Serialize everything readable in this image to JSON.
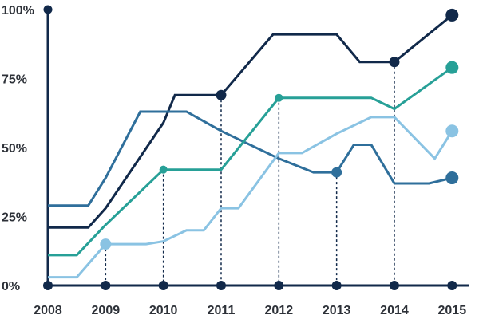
{
  "chart_data": {
    "type": "line",
    "x_ticks": [
      "2008",
      "2009",
      "2010",
      "2011",
      "2012",
      "2013",
      "2014",
      "2015"
    ],
    "y_ticks": [
      "0%",
      "25%",
      "50%",
      "75%",
      "100%"
    ],
    "ylim": [
      0,
      100
    ],
    "xlim": [
      2008,
      2015.3
    ],
    "grid": false,
    "axis_color": "#11294a",
    "series": [
      {
        "color": "#11294a",
        "points": [
          [
            2008,
            21
          ],
          [
            2008.7,
            21
          ],
          [
            2009,
            28
          ],
          [
            2010,
            59
          ],
          [
            2010.2,
            69
          ],
          [
            2011,
            69
          ],
          [
            2011.9,
            91
          ],
          [
            2012.2,
            91
          ],
          [
            2013,
            91
          ],
          [
            2013.4,
            81
          ],
          [
            2014,
            81
          ],
          [
            2015,
            98
          ]
        ],
        "marker_x": [
          2011,
          2014
        ],
        "end_marker": true
      },
      {
        "color": "#2f6f9b",
        "points": [
          [
            2008,
            29
          ],
          [
            2008.7,
            29
          ],
          [
            2009,
            39
          ],
          [
            2009.6,
            63
          ],
          [
            2010.4,
            63
          ],
          [
            2011,
            56
          ],
          [
            2012,
            46
          ],
          [
            2012.6,
            41
          ],
          [
            2013,
            41
          ],
          [
            2013.3,
            51
          ],
          [
            2013.6,
            51
          ],
          [
            2014,
            37
          ],
          [
            2014.6,
            37
          ],
          [
            2015,
            39
          ]
        ],
        "marker_x": [
          2013
        ],
        "end_marker": true
      },
      {
        "color": "#27a097",
        "points": [
          [
            2008,
            11
          ],
          [
            2008.5,
            11
          ],
          [
            2009,
            22
          ],
          [
            2010,
            42
          ],
          [
            2010.8,
            42
          ],
          [
            2011,
            42
          ],
          [
            2012,
            68
          ],
          [
            2013,
            68
          ],
          [
            2013.6,
            68
          ],
          [
            2014,
            64
          ],
          [
            2015,
            79
          ]
        ],
        "marker_x": [
          2010,
          2012
        ],
        "end_marker": true
      },
      {
        "color": "#8ac3e3",
        "points": [
          [
            2008,
            3
          ],
          [
            2008.5,
            3
          ],
          [
            2009,
            15
          ],
          [
            2009.7,
            15
          ],
          [
            2010,
            16
          ],
          [
            2010.4,
            20
          ],
          [
            2010.7,
            20
          ],
          [
            2011,
            28
          ],
          [
            2011.3,
            28
          ],
          [
            2012,
            48
          ],
          [
            2012.4,
            48
          ],
          [
            2013,
            55
          ],
          [
            2013.6,
            61
          ],
          [
            2014,
            61
          ],
          [
            2014.7,
            46
          ],
          [
            2015,
            56
          ]
        ],
        "marker_x": [
          2009
        ],
        "end_marker": true
      }
    ]
  }
}
